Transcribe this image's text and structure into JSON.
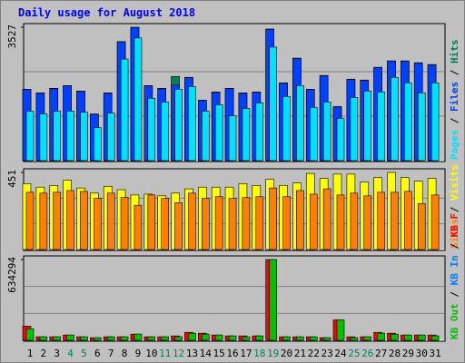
{
  "chart_data": [
    {
      "type": "bar",
      "title": "Daily usage for August 2018",
      "ylim": [
        0,
        3527
      ],
      "yticks": [
        3527
      ],
      "grid": true,
      "legend_separator": " / ",
      "series": [
        {
          "name": "Hits",
          "color": "#00805c",
          "values": [
            1888,
            1791,
            1912,
            1984,
            1839,
            1234,
            1791,
            3146,
            3527,
            1984,
            1912,
            2226,
            2202,
            1597,
            1815,
            1912,
            1791,
            1815,
            3480,
            2057,
            2710,
            1888,
            2251,
            1428,
            2154,
            2130,
            2468,
            2638,
            2638,
            2589,
            2541
          ]
        },
        {
          "name": "Files",
          "color": "#0040ff",
          "values": [
            1880,
            1780,
            1900,
            1975,
            1830,
            1225,
            1780,
            3140,
            3520,
            1975,
            1900,
            2000,
            2195,
            1590,
            1805,
            1905,
            1780,
            1805,
            3470,
            2050,
            2700,
            1880,
            2240,
            1420,
            2145,
            2120,
            2460,
            2630,
            2630,
            2580,
            2530
          ]
        },
        {
          "name": "Pages",
          "color": "#00e0ff",
          "values": [
            1307,
            1234,
            1307,
            1307,
            1283,
            871,
            1258,
            2686,
            3243,
            1646,
            1549,
            1888,
            1960,
            1307,
            1476,
            1186,
            1379,
            1525,
            3001,
            1694,
            1984,
            1404,
            1549,
            1113,
            1670,
            1839,
            1815,
            2202,
            2057,
            1791,
            2057
          ]
        }
      ]
    },
    {
      "type": "bar",
      "ylim": [
        0,
        451
      ],
      "yticks": [
        451
      ],
      "grid": true,
      "legend_separator": " / ",
      "series": [
        {
          "name": "Visits",
          "color": "#ffff00",
          "values": [
            385,
            365,
            375,
            406,
            360,
            330,
            370,
            350,
            319,
            324,
            314,
            330,
            355,
            365,
            365,
            365,
            385,
            375,
            411,
            375,
            390,
            445,
            416,
            441,
            441,
            395,
            421,
            451,
            421,
            400,
            416
          ]
        },
        {
          "name": "Sites",
          "color": "#ff8000",
          "values": [
            335,
            330,
            335,
            345,
            340,
            299,
            330,
            304,
            259,
            319,
            299,
            274,
            330,
            299,
            309,
            299,
            304,
            309,
            360,
            309,
            345,
            324,
            355,
            319,
            330,
            314,
            335,
            335,
            340,
            269,
            319
          ]
        }
      ]
    },
    {
      "type": "bar",
      "ylim": [
        0,
        634294
      ],
      "yticks": [
        634294
      ],
      "grid": true,
      "legend_separator": " / ",
      "categories": [
        "1",
        "2",
        "3",
        "4",
        "5",
        "6",
        "7",
        "8",
        "9",
        "10",
        "11",
        "12",
        "13",
        "14",
        "15",
        "16",
        "17",
        "18",
        "19",
        "20",
        "21",
        "22",
        "23",
        "24",
        "25",
        "26",
        "27",
        "28",
        "29",
        "30",
        "31"
      ],
      "category_colors": [
        "#000",
        "#000",
        "#000",
        "#00805c",
        "#00805c",
        "#000",
        "#000",
        "#000",
        "#000",
        "#000",
        "#00805c",
        "#00805c",
        "#000",
        "#000",
        "#000",
        "#000",
        "#000",
        "#00805c",
        "#00805c",
        "#000",
        "#000",
        "#000",
        "#000",
        "#000",
        "#00805c",
        "#00805c",
        "#000",
        "#000",
        "#000",
        "#000",
        "#000"
      ],
      "series": [
        {
          "name": "KB F",
          "color": "#ff0000",
          "values": [
            111500,
            27900,
            27900,
            41800,
            27900,
            20900,
            27900,
            27900,
            48800,
            27900,
            27900,
            34900,
            62700,
            55800,
            41800,
            34900,
            34900,
            34900,
            634294,
            27900,
            27900,
            27900,
            20900,
            160300,
            27900,
            27900,
            62700,
            55800,
            41800,
            41800,
            41800
          ]
        },
        {
          "name": "KB In",
          "color": "#0080ff",
          "values": [
            null,
            null,
            null,
            null,
            null,
            null,
            null,
            null,
            null,
            null,
            null,
            null,
            null,
            null,
            null,
            null,
            null,
            null,
            null,
            null,
            null,
            null,
            null,
            null,
            null,
            null,
            null,
            null,
            null,
            null,
            null
          ]
        },
        {
          "name": "KB Out",
          "color": "#00c000",
          "values": [
            90600,
            27900,
            27900,
            41800,
            27900,
            20900,
            27900,
            27900,
            48800,
            27900,
            27900,
            27900,
            55800,
            48800,
            41800,
            34900,
            27900,
            34900,
            634294,
            27900,
            27900,
            27900,
            20900,
            160300,
            20900,
            27900,
            55800,
            48800,
            41800,
            41800,
            34900
          ]
        }
      ]
    }
  ]
}
